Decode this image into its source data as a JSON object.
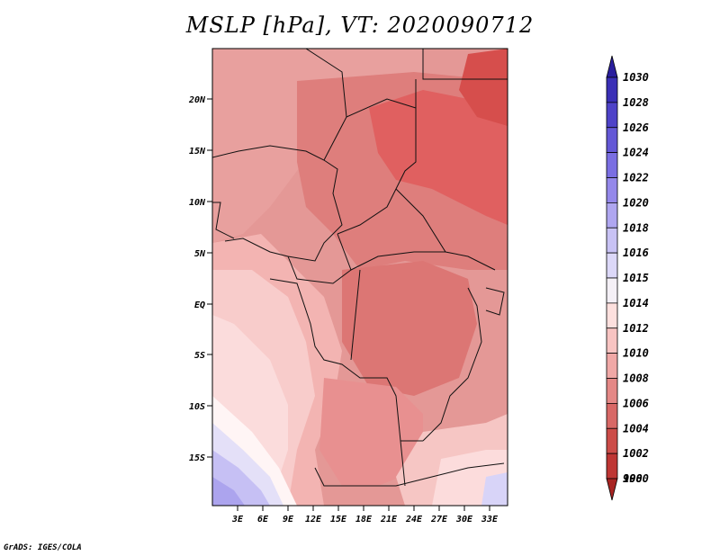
{
  "title": "MSLP [hPa], VT: 2020090712",
  "footer": "GrADS: IGES/COLA",
  "map": {
    "lat_labels": [
      "20N",
      "15N",
      "10N",
      "5N",
      "EQ",
      "5S",
      "10S",
      "15S"
    ],
    "lon_labels": [
      "3E",
      "6E",
      "9E",
      "12E",
      "15E",
      "18E",
      "21E",
      "24E",
      "27E",
      "30E",
      "33E"
    ]
  },
  "colorbar": {
    "levels": [
      "1030",
      "1028",
      "1026",
      "1024",
      "1022",
      "1020",
      "1018",
      "1016",
      "1015",
      "1014",
      "1012",
      "1010",
      "1008",
      "1006",
      "1004",
      "1002",
      "1000",
      "998"
    ],
    "colors": [
      "#2a1e9e",
      "#3a2fb6",
      "#4e42c8",
      "#6458d6",
      "#7a6ee2",
      "#9488ea",
      "#afa6f0",
      "#c8c2f4",
      "#dcd8f8",
      "#f4f0f6",
      "#fde0de",
      "#f8c4c2",
      "#f0a8a6",
      "#e48886",
      "#d86866",
      "#cc4c48",
      "#be3634",
      "#a82422"
    ]
  }
}
